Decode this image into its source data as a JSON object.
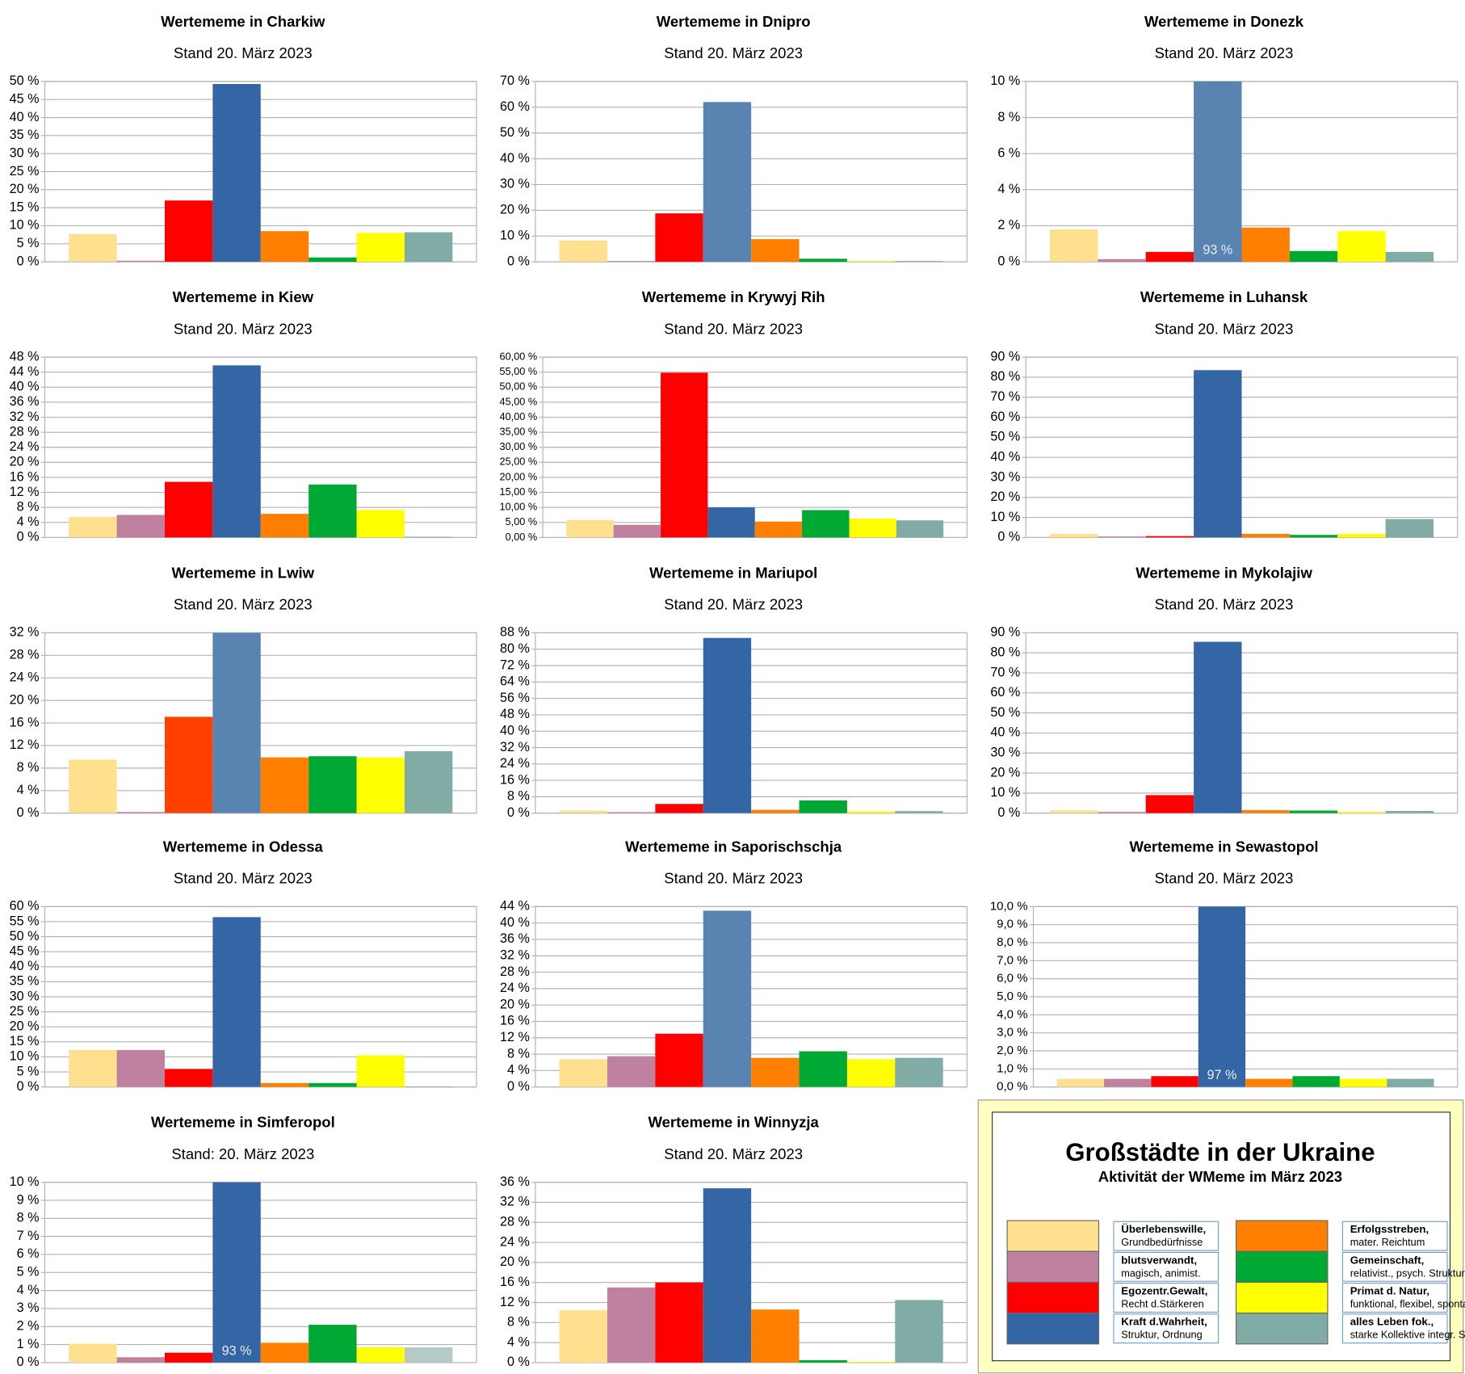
{
  "chart_data": [
    {
      "type": "bar",
      "title": "Wertememe in Charkiw",
      "subtitle": "Stand 20. März 2023",
      "values": [
        7.7,
        0.3,
        17,
        49.3,
        8.5,
        1.2,
        8,
        8.2
      ],
      "colors": [
        "#ffe08f",
        "#c0809f",
        "#ff0000",
        "#3465a4",
        "#ff8000",
        "#00a933",
        "#ffff00",
        "#81aca6"
      ],
      "ylim": [
        0,
        50
      ],
      "yticks": [
        {
          "value": 0,
          "label": "0 %"
        },
        {
          "value": 5,
          "label": "5 %"
        },
        {
          "value": 10,
          "label": "10 %"
        },
        {
          "value": 15,
          "label": "15 %"
        },
        {
          "value": 20,
          "label": "20 %"
        },
        {
          "value": 25,
          "label": "25 %"
        },
        {
          "value": 30,
          "label": "30 %"
        },
        {
          "value": 35,
          "label": "35 %"
        },
        {
          "value": 40,
          "label": "40 %"
        },
        {
          "value": 45,
          "label": "45 %"
        },
        {
          "value": 50,
          "label": "50 %"
        }
      ],
      "grid": true
    },
    {
      "type": "bar",
      "title": "Wertememe in Dnipro",
      "subtitle": "Stand 20. März 2023",
      "values": [
        8.3,
        0.3,
        18.8,
        62,
        8.8,
        1.2,
        0.3,
        0.3
      ],
      "colors": [
        "#ffe08f",
        "#c0809f",
        "#ff0000",
        "#5983b0",
        "#ff8000",
        "#00a933",
        "#ffff00",
        "#81aca6"
      ],
      "ylim": [
        0,
        70
      ],
      "yticks": [
        {
          "value": 0,
          "label": "0 %"
        },
        {
          "value": 10,
          "label": "10 %"
        },
        {
          "value": 20,
          "label": "20 %"
        },
        {
          "value": 30,
          "label": "30 %"
        },
        {
          "value": 40,
          "label": "40 %"
        },
        {
          "value": 50,
          "label": "50 %"
        },
        {
          "value": 60,
          "label": "60 %"
        },
        {
          "value": 70,
          "label": "70 %"
        }
      ],
      "grid": true
    },
    {
      "type": "bar",
      "title": "Wertememe in Donezk",
      "subtitle": "Stand 20. März 2023",
      "values": [
        1.8,
        0.15,
        0.55,
        93,
        1.9,
        0.6,
        1.7,
        0.55
      ],
      "value_labels": [
        null,
        null,
        null,
        "93 %",
        null,
        null,
        null,
        null
      ],
      "colors": [
        "#ffe08f",
        "#c0809f",
        "#ff0000",
        "#5983b0",
        "#ff8000",
        "#00a933",
        "#ffff00",
        "#81aca6"
      ],
      "ylim": [
        0,
        10
      ],
      "yticks": [
        {
          "value": 0,
          "label": "0 %"
        },
        {
          "value": 2,
          "label": "2 %"
        },
        {
          "value": 4,
          "label": "4 %"
        },
        {
          "value": 6,
          "label": "6 %"
        },
        {
          "value": 8,
          "label": "8 %"
        },
        {
          "value": 10,
          "label": "10 %"
        }
      ],
      "grid": true
    },
    {
      "type": "bar",
      "title": "Wertememe in Kiew",
      "subtitle": "Stand 20. März 2023",
      "values": [
        5.5,
        6,
        14.8,
        45.8,
        6.3,
        14.1,
        7.3,
        0.2
      ],
      "colors": [
        "#ffe08f",
        "#c0809f",
        "#ff0000",
        "#3465a4",
        "#ff8000",
        "#00a933",
        "#ffff00",
        "#81aca6"
      ],
      "ylim": [
        0,
        48
      ],
      "yticks": [
        {
          "value": 0,
          "label": "0 %"
        },
        {
          "value": 4,
          "label": "4 %"
        },
        {
          "value": 8,
          "label": "8 %"
        },
        {
          "value": 12,
          "label": "12 %"
        },
        {
          "value": 16,
          "label": "16 %"
        },
        {
          "value": 20,
          "label": "20 %"
        },
        {
          "value": 24,
          "label": "24 %"
        },
        {
          "value": 28,
          "label": "28 %"
        },
        {
          "value": 32,
          "label": "32 %"
        },
        {
          "value": 36,
          "label": "36 %"
        },
        {
          "value": 40,
          "label": "40 %"
        },
        {
          "value": 44,
          "label": "44 %"
        },
        {
          "value": 48,
          "label": "48 %"
        }
      ],
      "grid": true
    },
    {
      "type": "bar",
      "title": "Wertememe in Krywyj Rih",
      "subtitle": "Stand 20. März 2023",
      "values": [
        5.8,
        4.2,
        54.8,
        10,
        5.3,
        9.1,
        6.3,
        5.7
      ],
      "colors": [
        "#ffe08f",
        "#c0809f",
        "#ff0000",
        "#3465a4",
        "#ff8000",
        "#00a933",
        "#ffff00",
        "#81aca6"
      ],
      "ylim": [
        0,
        60
      ],
      "yticks": [
        {
          "value": 0,
          "label": "0,00 %"
        },
        {
          "value": 5,
          "label": "5,00 %"
        },
        {
          "value": 10,
          "label": "10,00 %"
        },
        {
          "value": 15,
          "label": "15,00 %"
        },
        {
          "value": 20,
          "label": "20,00 %"
        },
        {
          "value": 25,
          "label": "25,00 %"
        },
        {
          "value": 30,
          "label": "30,00 %"
        },
        {
          "value": 35,
          "label": "35,00 %"
        },
        {
          "value": 40,
          "label": "40,00 %"
        },
        {
          "value": 45,
          "label": "45,00 %"
        },
        {
          "value": 50,
          "label": "50,00 %"
        },
        {
          "value": 55,
          "label": "55,00 %"
        },
        {
          "value": 60,
          "label": "60,00 %"
        }
      ],
      "grid": true,
      "tick_size": 11
    },
    {
      "type": "bar",
      "title": "Wertememe in Luhansk",
      "subtitle": "Stand 20. März 2023",
      "values": [
        1.8,
        0.5,
        0.7,
        83.5,
        1.8,
        1.3,
        1.8,
        9.2
      ],
      "colors": [
        "#ffe08f",
        "#c0809f",
        "#ff0000",
        "#3465a4",
        "#ff8000",
        "#00a933",
        "#ffff00",
        "#81aca6"
      ],
      "ylim": [
        0,
        90
      ],
      "yticks": [
        {
          "value": 0,
          "label": "0 %"
        },
        {
          "value": 10,
          "label": "10 %"
        },
        {
          "value": 20,
          "label": "20 %"
        },
        {
          "value": 30,
          "label": "30 %"
        },
        {
          "value": 40,
          "label": "40 %"
        },
        {
          "value": 50,
          "label": "50 %"
        },
        {
          "value": 60,
          "label": "60 %"
        },
        {
          "value": 70,
          "label": "70 %"
        },
        {
          "value": 80,
          "label": "80 %"
        },
        {
          "value": 90,
          "label": "90 %"
        }
      ],
      "grid": true
    },
    {
      "type": "bar",
      "title": "Wertememe in Lwiw",
      "subtitle": "Stand 20. März 2023",
      "values": [
        9.5,
        0.2,
        17.1,
        32.3,
        9.9,
        10.1,
        9.9,
        11
      ],
      "colors": [
        "#ffe08f",
        "#c0809f",
        "#ff4000",
        "#5983b0",
        "#ff8000",
        "#00a933",
        "#ffff00",
        "#81aca6"
      ],
      "ylim": [
        0,
        32
      ],
      "yticks": [
        {
          "value": 0,
          "label": "0 %"
        },
        {
          "value": 4,
          "label": "4 %"
        },
        {
          "value": 8,
          "label": "8 %"
        },
        {
          "value": 12,
          "label": "12 %"
        },
        {
          "value": 16,
          "label": "16 %"
        },
        {
          "value": 20,
          "label": "20 %"
        },
        {
          "value": 24,
          "label": "24 %"
        },
        {
          "value": 28,
          "label": "28 %"
        },
        {
          "value": 32,
          "label": "32 %"
        }
      ],
      "grid": true
    },
    {
      "type": "bar",
      "title": "Wertememe in Mariupol",
      "subtitle": "Stand 20. März 2023",
      "values": [
        1.3,
        0.5,
        4.5,
        85.5,
        1.6,
        6.2,
        0.8,
        1
      ],
      "colors": [
        "#ffe08f",
        "#c0809f",
        "#ff0000",
        "#3465a4",
        "#ff8000",
        "#00a933",
        "#ffff00",
        "#81aca6"
      ],
      "ylim": [
        0,
        88
      ],
      "yticks": [
        {
          "value": 0,
          "label": "0 %"
        },
        {
          "value": 8,
          "label": "8 %"
        },
        {
          "value": 16,
          "label": "16 %"
        },
        {
          "value": 24,
          "label": "24 %"
        },
        {
          "value": 32,
          "label": "32 %"
        },
        {
          "value": 40,
          "label": "40 %"
        },
        {
          "value": 48,
          "label": "48 %"
        },
        {
          "value": 56,
          "label": "56 %"
        },
        {
          "value": 64,
          "label": "64 %"
        },
        {
          "value": 72,
          "label": "72 %"
        },
        {
          "value": 80,
          "label": "80 %"
        },
        {
          "value": 88,
          "label": "88 %"
        }
      ],
      "grid": true
    },
    {
      "type": "bar",
      "title": "Wertememe in Mykolajiw",
      "subtitle": "Stand 20. März 2023",
      "values": [
        1.4,
        0.6,
        9,
        85.5,
        1.5,
        1.3,
        0.6,
        1.1
      ],
      "colors": [
        "#ffe08f",
        "#c0809f",
        "#ff0000",
        "#3465a4",
        "#ff8000",
        "#00a933",
        "#ffff00",
        "#81aca6"
      ],
      "ylim": [
        0,
        90
      ],
      "yticks": [
        {
          "value": 0,
          "label": "0 %"
        },
        {
          "value": 10,
          "label": "10 %"
        },
        {
          "value": 20,
          "label": "20 %"
        },
        {
          "value": 30,
          "label": "30 %"
        },
        {
          "value": 40,
          "label": "40 %"
        },
        {
          "value": 50,
          "label": "50 %"
        },
        {
          "value": 60,
          "label": "60 %"
        },
        {
          "value": 70,
          "label": "70 %"
        },
        {
          "value": 80,
          "label": "80 %"
        },
        {
          "value": 90,
          "label": "90 %"
        }
      ],
      "grid": true
    },
    {
      "type": "bar",
      "title": "Wertememe in Odessa",
      "subtitle": "Stand 20. März 2023",
      "values": [
        12.3,
        12.3,
        6,
        56.5,
        1.3,
        1.3,
        10.5,
        0.2
      ],
      "colors": [
        "#ffe08f",
        "#c0809f",
        "#ff0000",
        "#3465a4",
        "#ff8000",
        "#00a933",
        "#ffff00",
        "#81aca6"
      ],
      "ylim": [
        0,
        60
      ],
      "yticks": [
        {
          "value": 0,
          "label": "0 %"
        },
        {
          "value": 5,
          "label": "5 %"
        },
        {
          "value": 10,
          "label": "10 %"
        },
        {
          "value": 15,
          "label": "15 %"
        },
        {
          "value": 20,
          "label": "20 %"
        },
        {
          "value": 25,
          "label": "25 %"
        },
        {
          "value": 30,
          "label": "30 %"
        },
        {
          "value": 35,
          "label": "35 %"
        },
        {
          "value": 40,
          "label": "40 %"
        },
        {
          "value": 45,
          "label": "45 %"
        },
        {
          "value": 50,
          "label": "50 %"
        },
        {
          "value": 55,
          "label": "55 %"
        },
        {
          "value": 60,
          "label": "60 %"
        }
      ],
      "grid": true
    },
    {
      "type": "bar",
      "title": "Wertememe in Saporischschja",
      "subtitle": "Stand 20. März 2023",
      "values": [
        6.8,
        7.5,
        13,
        43,
        7.1,
        8.7,
        6.8,
        7.1
      ],
      "colors": [
        "#ffe08f",
        "#c0809f",
        "#ff0000",
        "#5983b0",
        "#ff8000",
        "#00a933",
        "#ffff00",
        "#81aca6"
      ],
      "ylim": [
        0,
        44
      ],
      "yticks": [
        {
          "value": 0,
          "label": "0 %"
        },
        {
          "value": 4,
          "label": "4 %"
        },
        {
          "value": 8,
          "label": "8 %"
        },
        {
          "value": 12,
          "label": "12 %"
        },
        {
          "value": 16,
          "label": "16 %"
        },
        {
          "value": 20,
          "label": "20 %"
        },
        {
          "value": 24,
          "label": "24 %"
        },
        {
          "value": 28,
          "label": "28 %"
        },
        {
          "value": 32,
          "label": "32 %"
        },
        {
          "value": 36,
          "label": "36 %"
        },
        {
          "value": 40,
          "label": "40 %"
        },
        {
          "value": 44,
          "label": "44 %"
        }
      ],
      "grid": true
    },
    {
      "type": "bar",
      "title": "Wertememe in Sewastopol",
      "subtitle": "Stand 20. März 2023",
      "values": [
        0.45,
        0.45,
        0.6,
        97,
        0.45,
        0.6,
        0.45,
        0.45
      ],
      "value_labels": [
        null,
        null,
        null,
        "97 %",
        null,
        null,
        null,
        null
      ],
      "colors": [
        "#ffe08f",
        "#c0809f",
        "#ff0000",
        "#3465a4",
        "#ff8000",
        "#00a933",
        "#ffff00",
        "#81aca6"
      ],
      "ylim": [
        0,
        10
      ],
      "yticks": [
        {
          "value": 0,
          "label": "0,0 %"
        },
        {
          "value": 1,
          "label": "1,0 %"
        },
        {
          "value": 2,
          "label": "2,0 %"
        },
        {
          "value": 3,
          "label": "3,0 %"
        },
        {
          "value": 4,
          "label": "4,0 %"
        },
        {
          "value": 5,
          "label": "5,0 %"
        },
        {
          "value": 6,
          "label": "6,0 %"
        },
        {
          "value": 7,
          "label": "7,0 %"
        },
        {
          "value": 8,
          "label": "8,0 %"
        },
        {
          "value": 9,
          "label": "9,0 %"
        },
        {
          "value": 10,
          "label": "10,0 %"
        }
      ],
      "grid": true,
      "tick_size": 13
    },
    {
      "type": "bar",
      "title": "Wertememe in Simferopol",
      "subtitle": "Stand: 20. März 2023",
      "values": [
        1.05,
        0.3,
        0.55,
        93,
        1.1,
        2.1,
        0.85,
        0.85
      ],
      "value_labels": [
        null,
        null,
        null,
        "93 %",
        null,
        null,
        null,
        null
      ],
      "colors": [
        "#ffe08f",
        "#c0809f",
        "#ff0000",
        "#3465a4",
        "#ff8000",
        "#00a933",
        "#ffff00",
        "#b3cac7"
      ],
      "ylim": [
        0,
        10
      ],
      "yticks": [
        {
          "value": 0,
          "label": "0 %"
        },
        {
          "value": 1,
          "label": "1 %"
        },
        {
          "value": 2,
          "label": "2 %"
        },
        {
          "value": 3,
          "label": "3 %"
        },
        {
          "value": 4,
          "label": "4 %"
        },
        {
          "value": 5,
          "label": "5 %"
        },
        {
          "value": 6,
          "label": "6 %"
        },
        {
          "value": 7,
          "label": "7 %"
        },
        {
          "value": 8,
          "label": "8 %"
        },
        {
          "value": 9,
          "label": "9 %"
        },
        {
          "value": 10,
          "label": "10 %"
        }
      ],
      "grid": true
    },
    {
      "type": "bar",
      "title": "Wertememe in Winnyzja",
      "subtitle": "Stand 20. März 2023",
      "values": [
        10.5,
        15,
        16,
        34.8,
        10.6,
        0.5,
        0.2,
        12.5
      ],
      "colors": [
        "#ffe08f",
        "#c0809f",
        "#ff0000",
        "#3465a4",
        "#ff8000",
        "#00a933",
        "#ffff00",
        "#81aca6"
      ],
      "ylim": [
        0,
        36
      ],
      "yticks": [
        {
          "value": 0,
          "label": "0 %"
        },
        {
          "value": 4,
          "label": "4 %"
        },
        {
          "value": 8,
          "label": "8 %"
        },
        {
          "value": 12,
          "label": "12 %"
        },
        {
          "value": 16,
          "label": "16 %"
        },
        {
          "value": 20,
          "label": "20 %"
        },
        {
          "value": 24,
          "label": "24 %"
        },
        {
          "value": 28,
          "label": "28 %"
        },
        {
          "value": 32,
          "label": "32 %"
        },
        {
          "value": 36,
          "label": "36 %"
        }
      ],
      "grid": true
    }
  ],
  "legend": {
    "title": "Großstädte in der Ukraine",
    "subtitle": "Aktivität der WMeme im März 2023",
    "items": [
      {
        "name": "Überlebenswille,",
        "text": "Grundbedürfnisse",
        "color": "#ffe08f"
      },
      {
        "name": "blutsverwandt,",
        "text": "magisch, animist.",
        "color": "#c0809f"
      },
      {
        "name": "Egozentr.Gewalt,",
        "text": "Recht d.Stärkeren",
        "color": "#ff0000"
      },
      {
        "name": "Kraft d.Wahrheit,",
        "text": "Struktur, Ordnung",
        "color": "#3465a4"
      },
      {
        "name": "Erfolgsstreben,",
        "text": "mater. Reichtum",
        "color": "#ff8000"
      },
      {
        "name": "Gemeinschaft,",
        "text": "relativist., psych. Strukturen",
        "color": "#00a933"
      },
      {
        "name": "Primat d. Natur,",
        "text": "funktional, flexibel, spontan,kompetent",
        "color": "#ffff00"
      },
      {
        "name": "alles Leben fok.,",
        "text": "starke Kollektive integr. Systeme",
        "color": "#81aca6"
      }
    ]
  }
}
